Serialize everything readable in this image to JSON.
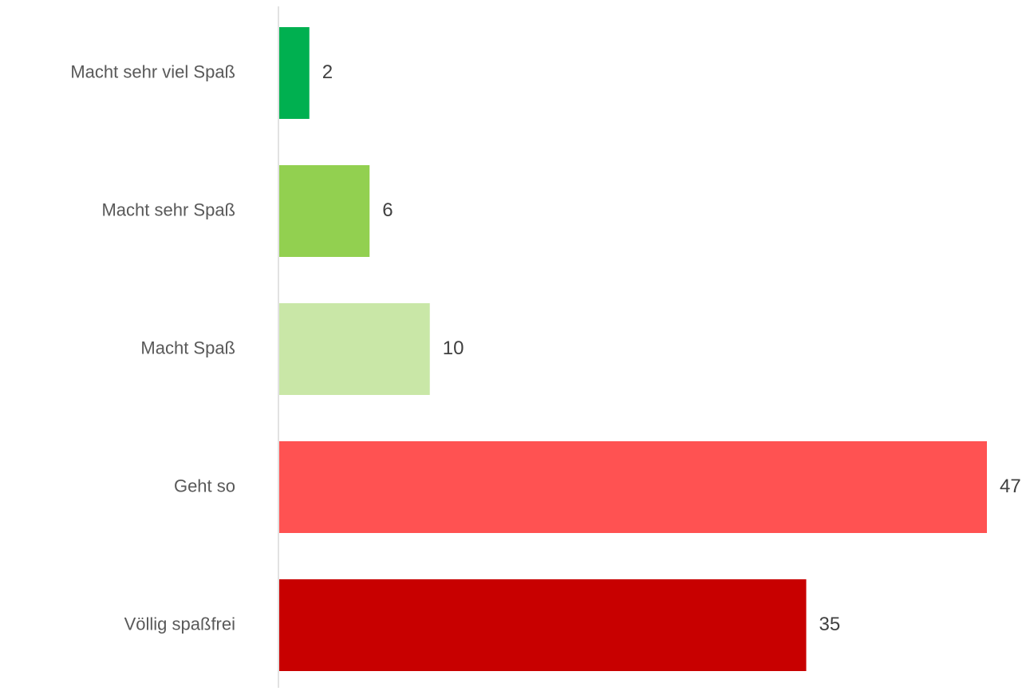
{
  "chart_data": {
    "type": "barh",
    "categories": [
      "Macht sehr viel Spaß",
      "Macht sehr Spaß",
      "Macht Spaß",
      "Geht so",
      "Völlig spaßfrei"
    ],
    "values": [
      2,
      6,
      10,
      47,
      35
    ],
    "colors": [
      "#00b050",
      "#92d050",
      "#c9e7a7",
      "#ff5252",
      "#c80000"
    ]
  }
}
